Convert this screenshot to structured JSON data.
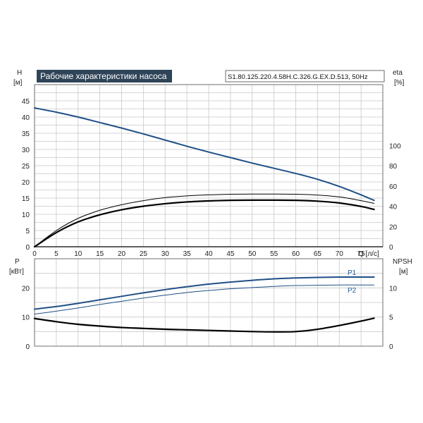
{
  "header": {
    "title": "Рабочие характеристики насоса",
    "model": "S1.80.125.220.4.58H.C.326.G.EX.D.513, 50Hz"
  },
  "colors": {
    "blue": "#1f4f86",
    "black": "#000000",
    "grid": "#c8c8c8",
    "title_bg": "#2f4458"
  },
  "chart_data": [
    {
      "type": "line",
      "panel": "top",
      "ylabel_left": [
        "H",
        "[м]"
      ],
      "ylabel_right": [
        "eta",
        "[%]"
      ],
      "xlabel": "Q [л/с]",
      "xlim": [
        0,
        80
      ],
      "ylim_left": [
        0,
        50
      ],
      "ylim_right": [
        0,
        160
      ],
      "grid": true,
      "x_ticks": [
        0,
        5,
        10,
        15,
        20,
        25,
        30,
        35,
        40,
        45,
        50,
        55,
        60,
        65,
        70,
        75
      ],
      "y_ticks_left": [
        0,
        5,
        10,
        15,
        20,
        25,
        30,
        35,
        40,
        45
      ],
      "y_ticks_right": [
        0,
        20,
        40,
        60,
        80,
        100
      ],
      "series": [
        {
          "axis": "left",
          "color": "#1f4f86",
          "width": 2,
          "x": [
            0,
            5,
            10,
            15,
            20,
            25,
            30,
            35,
            40,
            45,
            50,
            55,
            60,
            65,
            70,
            75,
            78
          ],
          "y": [
            42.8,
            41.5,
            40.0,
            38.3,
            36.6,
            34.8,
            32.9,
            31.0,
            29.2,
            27.5,
            25.8,
            24.2,
            22.6,
            20.8,
            18.6,
            16.0,
            14.3
          ]
        },
        {
          "axis": "right",
          "color": "#000000",
          "width": 1,
          "x": [
            0,
            5,
            10,
            15,
            20,
            25,
            30,
            35,
            40,
            45,
            50,
            55,
            60,
            65,
            70,
            75,
            78
          ],
          "y": [
            0,
            16,
            28,
            36,
            41.5,
            45.5,
            48.5,
            50.2,
            51.2,
            51.8,
            52.0,
            52.0,
            51.8,
            51.0,
            49.2,
            45.5,
            42.8
          ]
        },
        {
          "axis": "right",
          "color": "#000000",
          "width": 2.2,
          "x": [
            0,
            5,
            10,
            15,
            20,
            25,
            30,
            35,
            40,
            45,
            50,
            55,
            60,
            65,
            70,
            75,
            78
          ],
          "y": [
            0,
            14,
            24.5,
            31.5,
            36.5,
            40,
            42.5,
            44.2,
            45.2,
            45.8,
            46.0,
            46.0,
            45.8,
            45.0,
            43.2,
            39.8,
            36.8
          ]
        }
      ]
    },
    {
      "type": "line",
      "panel": "bottom",
      "ylabel_left": [
        "P",
        "[кВт]"
      ],
      "ylabel_right": [
        "NPSH",
        "[м]"
      ],
      "xlim": [
        0,
        80
      ],
      "ylim_left": [
        0,
        30
      ],
      "ylim_right": [
        0,
        15
      ],
      "grid": true,
      "y_ticks_left": [
        0,
        10,
        20
      ],
      "y_ticks_right": [
        0,
        5,
        10
      ],
      "series": [
        {
          "name": "P1",
          "axis": "left",
          "color": "#1f4f86",
          "width": 2,
          "x": [
            0,
            5,
            10,
            15,
            20,
            25,
            30,
            35,
            40,
            45,
            50,
            55,
            60,
            65,
            70,
            75,
            78
          ],
          "y": [
            12.7,
            13.6,
            14.7,
            15.9,
            17.1,
            18.3,
            19.4,
            20.4,
            21.3,
            22.0,
            22.6,
            23.1,
            23.4,
            23.6,
            23.7,
            23.7,
            23.7
          ]
        },
        {
          "name": "P2",
          "axis": "left",
          "color": "#1f4f86",
          "width": 1,
          "x": [
            0,
            5,
            10,
            15,
            20,
            25,
            30,
            35,
            40,
            45,
            50,
            55,
            60,
            65,
            70,
            75,
            78
          ],
          "y": [
            11.0,
            12.0,
            13.1,
            14.3,
            15.4,
            16.5,
            17.5,
            18.4,
            19.1,
            19.7,
            20.1,
            20.5,
            20.8,
            20.9,
            21.0,
            21.0,
            21.0
          ]
        },
        {
          "axis": "right",
          "color": "#000000",
          "width": 2.2,
          "x": [
            0,
            5,
            10,
            15,
            20,
            25,
            30,
            35,
            40,
            45,
            50,
            55,
            60,
            65,
            70,
            75,
            78
          ],
          "y": [
            4.75,
            4.2,
            3.75,
            3.45,
            3.2,
            3.05,
            2.9,
            2.8,
            2.7,
            2.6,
            2.5,
            2.45,
            2.5,
            2.9,
            3.55,
            4.3,
            4.8
          ]
        }
      ]
    }
  ]
}
